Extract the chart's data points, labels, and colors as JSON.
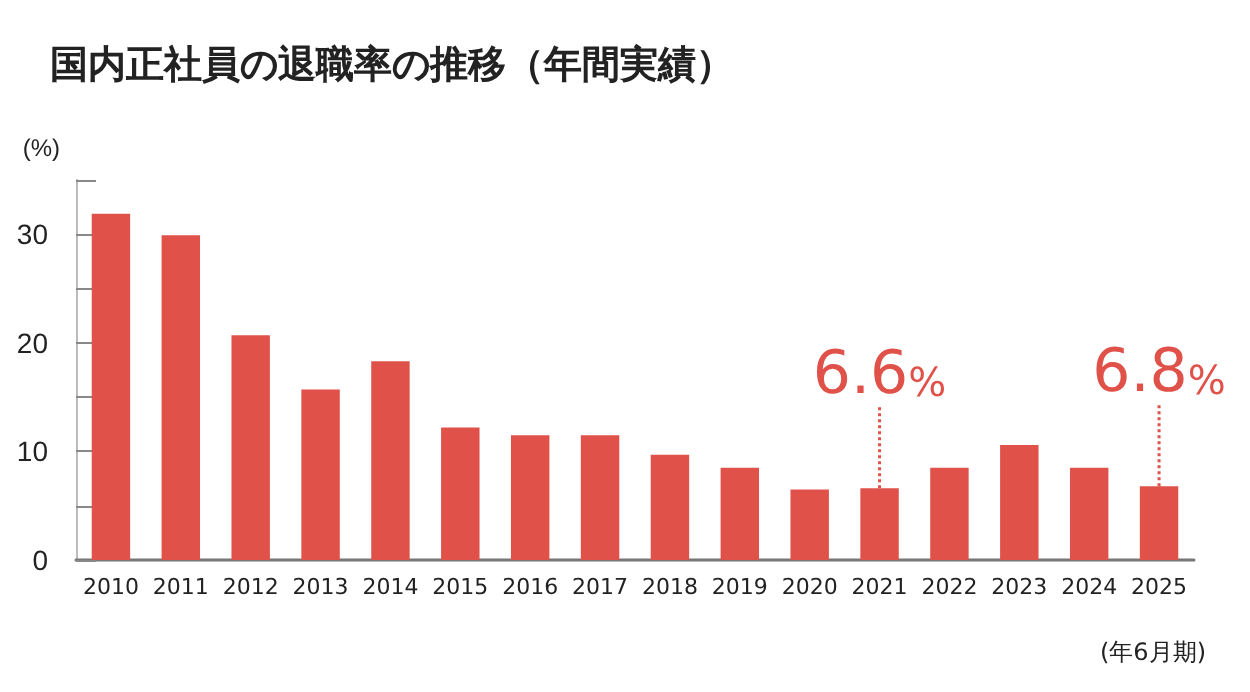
{
  "chart_data": {
    "type": "bar",
    "title": "国内正社員の退職率の推移（年間実績）",
    "ylabel": "(%)",
    "categories": [
      "2010",
      "2011",
      "2012",
      "2013",
      "2014",
      "2015",
      "2016",
      "2017",
      "2018",
      "2019",
      "2020",
      "2021",
      "2022",
      "2023",
      "2024",
      "2025"
    ],
    "values": [
      31.9,
      29.9,
      20.7,
      15.7,
      18.3,
      12.2,
      11.5,
      11.5,
      9.7,
      8.5,
      6.5,
      6.6,
      8.5,
      10.6,
      8.5,
      6.8
    ],
    "value_labels": [
      null,
      null,
      null,
      null,
      null,
      null,
      null,
      null,
      null,
      null,
      null,
      "6.6%",
      null,
      null,
      null,
      "6.8%"
    ],
    "color": "#e0514a",
    "ylim": [
      0,
      35
    ],
    "yticks": [
      0,
      {
        "value": 5,
        "label": null
      },
      10,
      {
        "value": 15,
        "label": null
      },
      20,
      {
        "value": 25,
        "label": null
      },
      30,
      {
        "value": 35,
        "label": null
      }
    ],
    "grid": false,
    "annotations": [
      "(年6月期)"
    ]
  }
}
